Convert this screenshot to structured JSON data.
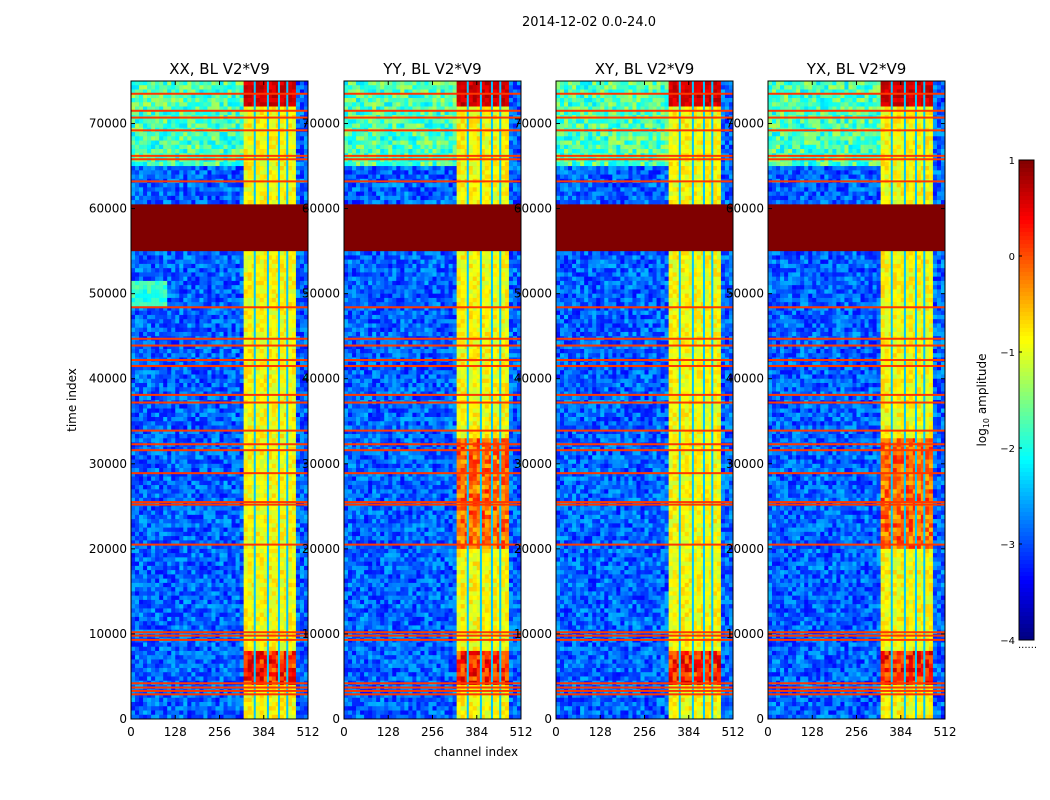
{
  "figure": {
    "suptitle": "2014-12-02 0.0-24.0",
    "xlabel": "channel index",
    "ylabel": "time index",
    "colorbar_label": "log",
    "colorbar_label_sub": "10",
    "colorbar_label_rest": " amplitude",
    "colorbar_ticks": [
      "1",
      "0",
      "−1",
      "−2",
      "−3",
      "−4"
    ],
    "colorbar_below": "......",
    "colormap": "jet"
  },
  "chart_data": {
    "type": "heatmap",
    "colormap": "jet",
    "clim": [
      -4,
      1
    ],
    "xlim": [
      0,
      512
    ],
    "ylim": [
      0,
      75000
    ],
    "x_ticks": [
      0,
      128,
      256,
      384,
      512
    ],
    "x_tick_labels": [
      "0",
      "128",
      "256",
      "384",
      "512"
    ],
    "y_ticks": [
      0,
      10000,
      20000,
      30000,
      40000,
      50000,
      60000,
      70000
    ],
    "y_tick_labels": [
      "0",
      "10000",
      "20000",
      "30000",
      "40000",
      "50000",
      "60000",
      "70000"
    ],
    "panels": [
      {
        "title": "XX, BL V2*V9",
        "band_style": "xx"
      },
      {
        "title": "YY, BL V2*V9",
        "band_style": "yy"
      },
      {
        "title": "XY, BL V2*V9",
        "band_style": "xx"
      },
      {
        "title": "YX, BL V2*V9",
        "band_style": "yy"
      }
    ],
    "flagged_block_time": [
      55000,
      60500
    ],
    "high_channel_band": [
      325,
      478
    ],
    "band_gap_channels": [
      358,
      396,
      428,
      452
    ],
    "rfi_rows_time": [
      2900,
      3300,
      3700,
      4200,
      9300,
      9800,
      10200,
      20500,
      25200,
      25500,
      28900,
      31600,
      32300,
      33900,
      37200,
      38100,
      41500,
      42200,
      43900,
      44700,
      48400,
      63200,
      65800,
      66200,
      69200,
      70700,
      71500,
      73500
    ],
    "noise_floor": -2.9
  }
}
